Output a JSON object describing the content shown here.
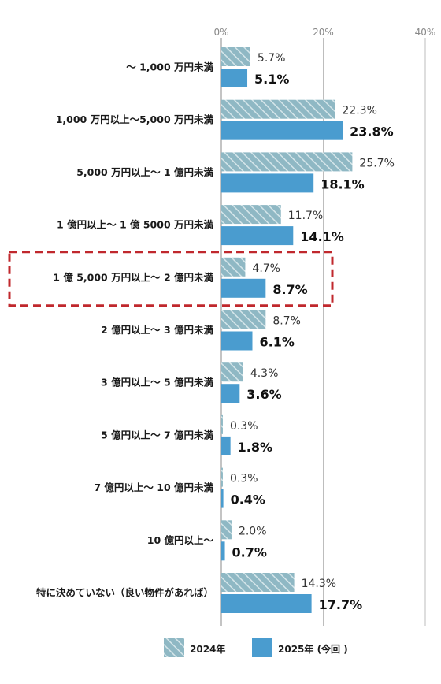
{
  "chart_data": {
    "type": "bar",
    "orientation": "horizontal",
    "categories": [
      "～ 1,000 万円未満",
      "1,000 万円以上～5,000 万円未満",
      "5,000 万円以上～ 1 億円未満",
      "1 億円以上～ 1 億 5000 万円未満",
      "1 億 5,000 万円以上～ 2 億円未満",
      "2 億円以上～ 3 億円未満",
      "3 億円以上～ 5 億円未満",
      "5 億円以上～ 7 億円未満",
      "7 億円以上～ 10 億円未満",
      "10 億円以上～",
      "特に決めていない（良い物件があれば）"
    ],
    "series": [
      {
        "name": "2024年",
        "values": [
          5.7,
          22.3,
          25.7,
          11.7,
          4.7,
          8.7,
          4.3,
          0.3,
          0.3,
          2.0,
          14.3
        ],
        "labels": [
          "5.7%",
          "22.3%",
          "25.7%",
          "11.7%",
          "4.7%",
          "8.7%",
          "4.3%",
          "0.3%",
          "0.3%",
          "2.0%",
          "14.3%"
        ],
        "color": "#8fb8c4",
        "pattern": "hatched"
      },
      {
        "name": "2025年 (今回 )",
        "values": [
          5.1,
          23.8,
          18.1,
          14.1,
          8.7,
          6.1,
          3.6,
          1.8,
          0.4,
          0.7,
          17.7
        ],
        "labels": [
          "5.1%",
          "23.8%",
          "18.1%",
          "14.1%",
          "8.7%",
          "6.1%",
          "3.6%",
          "1.8%",
          "0.4%",
          "0.7%",
          "17.7%"
        ],
        "color": "#4a9ccf",
        "pattern": "solid"
      }
    ],
    "xlim": [
      0,
      40
    ],
    "x_ticks": [
      "0%",
      "20%",
      "40%"
    ],
    "x_tick_values": [
      0,
      20,
      40
    ],
    "grid": true,
    "legend_position": "bottom",
    "highlighted_category_index": 4,
    "highlight_color": "#c0282d"
  }
}
